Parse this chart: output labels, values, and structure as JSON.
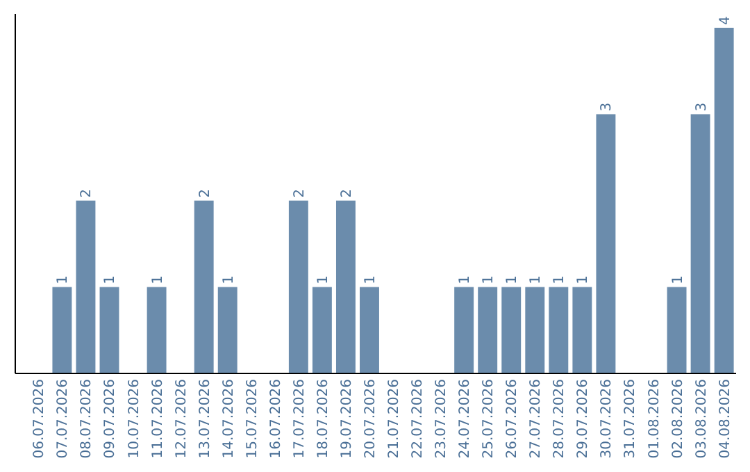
{
  "chart_data": {
    "type": "bar",
    "categories": [
      "06.07.2026",
      "07.07.2026",
      "08.07.2026",
      "09.07.2026",
      "10.07.2026",
      "11.07.2026",
      "12.07.2026",
      "13.07.2026",
      "14.07.2026",
      "15.07.2026",
      "16.07.2026",
      "17.07.2026",
      "18.07.2026",
      "19.07.2026",
      "20.07.2026",
      "21.07.2026",
      "22.07.2026",
      "23.07.2026",
      "24.07.2026",
      "25.07.2026",
      "26.07.2026",
      "27.07.2026",
      "28.07.2026",
      "29.07.2026",
      "30.07.2026",
      "31.07.2026",
      "01.08.2026",
      "02.08.2026",
      "03.08.2026",
      "04.08.2026"
    ],
    "values": [
      0,
      1,
      2,
      1,
      0,
      1,
      0,
      2,
      1,
      0,
      0,
      2,
      1,
      2,
      1,
      0,
      0,
      0,
      1,
      1,
      1,
      1,
      1,
      1,
      3,
      0,
      0,
      1,
      3,
      4
    ],
    "value_labels": [
      null,
      "1",
      "2",
      "1",
      null,
      "1",
      null,
      "2",
      "1",
      null,
      null,
      "2",
      "1",
      "2",
      "1",
      null,
      null,
      null,
      "1",
      "1",
      "1",
      "1",
      "1",
      "1",
      "3",
      null,
      null,
      "1",
      "3",
      "4"
    ],
    "color": "#6b8cac",
    "ylim": [
      0,
      4
    ],
    "tick_labels": "x"
  }
}
